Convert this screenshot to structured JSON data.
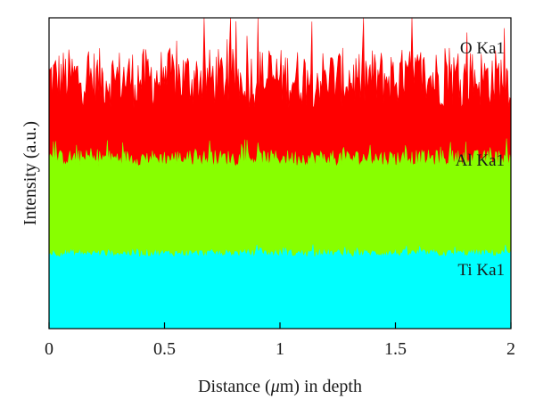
{
  "chart_data": {
    "type": "area",
    "title": "",
    "xlabel_prefix": "Distance (",
    "xlabel_mu": "μ",
    "xlabel_suffix": "m) in depth",
    "xlabel": "Distance (μm) in depth",
    "ylabel": "Intensity (a.u.)",
    "xlim": [
      0,
      2
    ],
    "x_ticks": [
      "0",
      "0.5",
      "1",
      "1.5",
      "2"
    ],
    "y_ticks": [],
    "grid": false,
    "series": [
      {
        "name": "O Ka1",
        "color": "#ff0000",
        "baseline": 0.9,
        "band_top": 1.0,
        "mean_level": 2.5,
        "noise_range": [
          2.2,
          3.0
        ]
      },
      {
        "name": "Al Ka1",
        "color": "#88ff00",
        "baseline": 0.45,
        "band_top": 0.9,
        "mean_level": 1.7,
        "noise_range": [
          1.6,
          1.82
        ]
      },
      {
        "name": "Ti Ka1",
        "color": "#00ffff",
        "baseline": 0.0,
        "band_top": 0.45,
        "mean_level": 0.75,
        "noise_range": [
          0.7,
          0.8
        ]
      }
    ]
  }
}
